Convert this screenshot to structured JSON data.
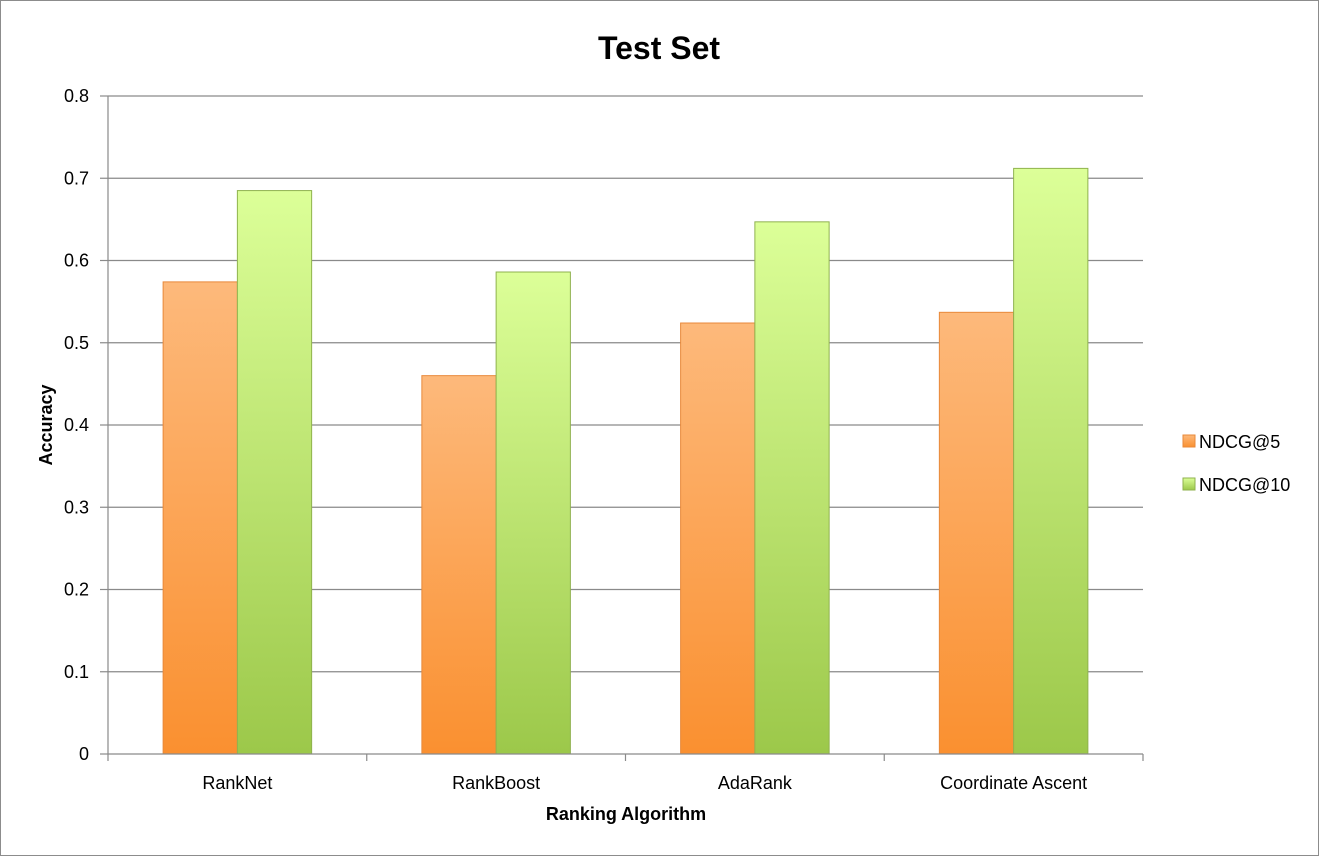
{
  "chart_data": {
    "type": "bar",
    "title": "Test Set",
    "xlabel": "Ranking Algorithm",
    "ylabel": "Accuracy",
    "categories": [
      "RankNet",
      "RankBoost",
      "AdaRank",
      "Coordinate Ascent"
    ],
    "series": [
      {
        "name": "NDCG@5",
        "values": [
          0.574,
          0.46,
          0.524,
          0.537
        ],
        "color": "#F79646"
      },
      {
        "name": "NDCG@10",
        "values": [
          0.685,
          0.586,
          0.647,
          0.712
        ],
        "color": "#9BBB59"
      }
    ],
    "ylim": [
      0,
      0.8
    ],
    "yticks": [
      "0",
      "0.1",
      "0.2",
      "0.3",
      "0.4",
      "0.5",
      "0.6",
      "0.7",
      "0.8"
    ],
    "grid": true,
    "legend": "right"
  }
}
